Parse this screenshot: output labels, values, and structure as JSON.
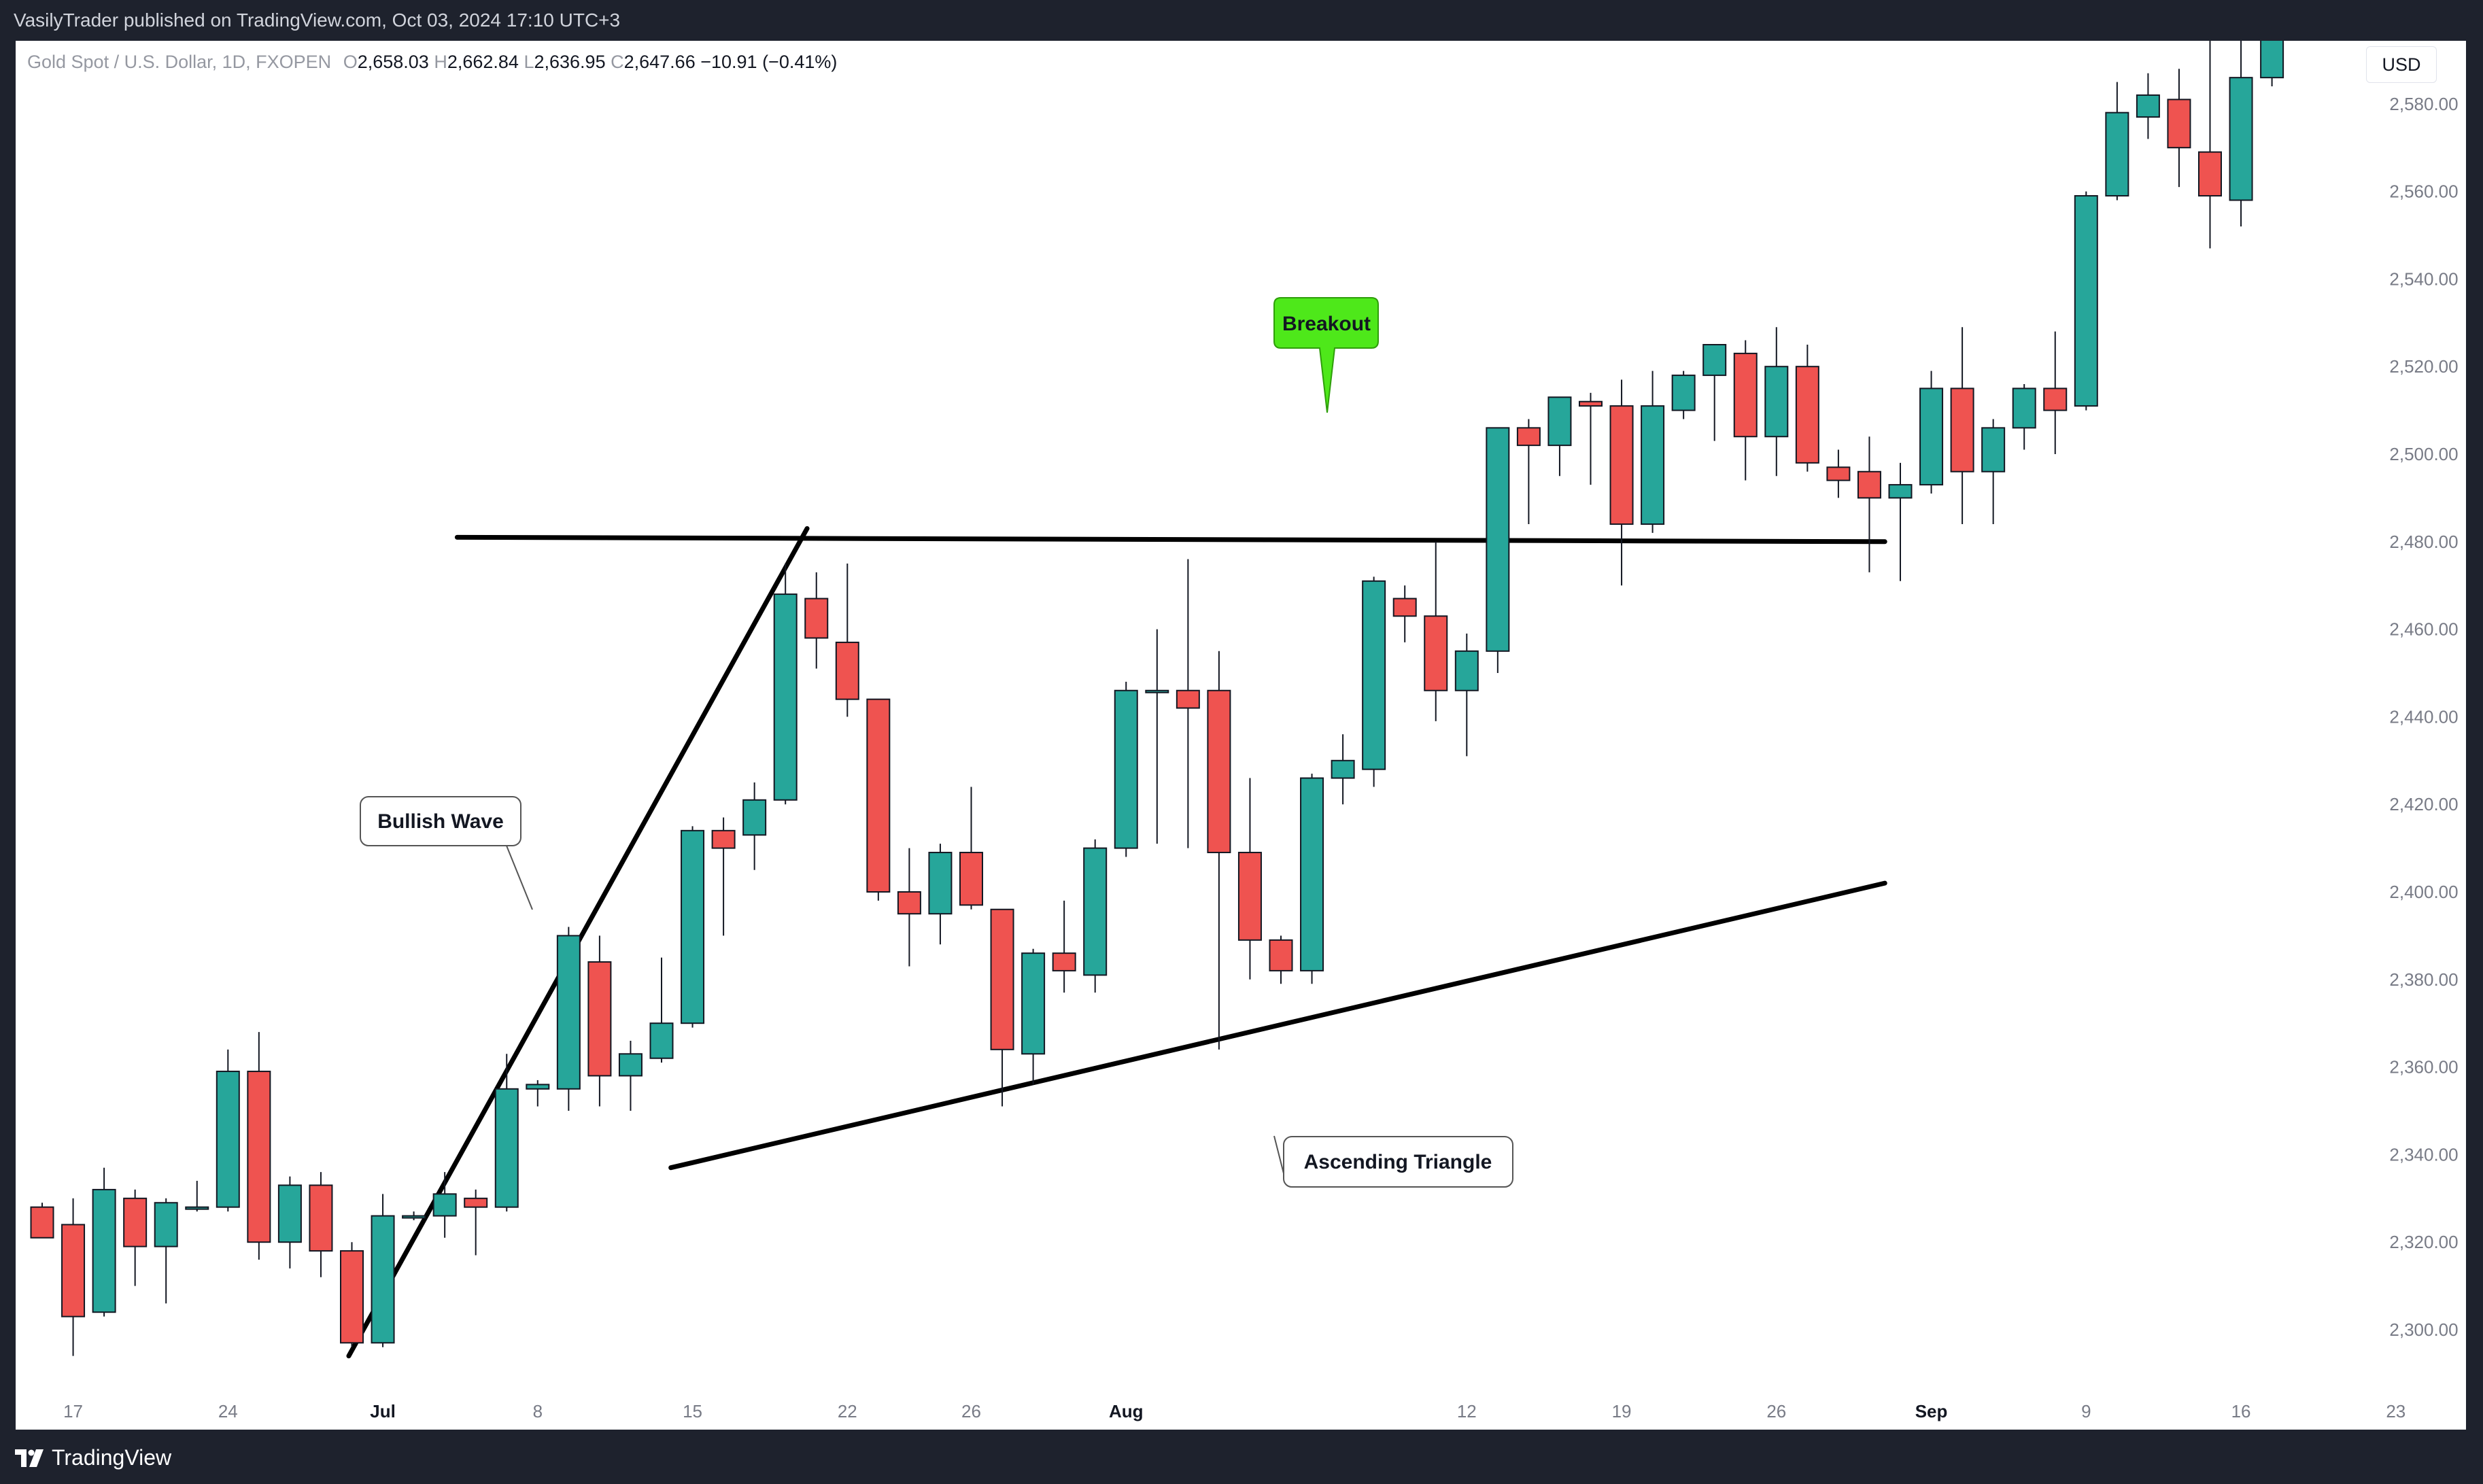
{
  "publish_line": "VasilyTrader published on TradingView.com, Oct 03, 2024 17:10 UTC+3",
  "legend": {
    "symbol": "Gold Spot / U.S. Dollar, 1D, FXOPEN",
    "open_label": "O",
    "open": "2,658.03",
    "high_label": "H",
    "high": "2,662.84",
    "low_label": "L",
    "low": "2,636.95",
    "close_label": "C",
    "close": "2,647.66",
    "change": "−10.91 (−0.41%)"
  },
  "currency": "USD",
  "footer": {
    "brand": "TradingView",
    "logo_icon": "tradingview-logo-icon"
  },
  "colors": {
    "up": "#26a69a",
    "down": "#ef5350",
    "breakout_callout": "#4ee81a",
    "background": "#ffffff"
  },
  "chart_data": {
    "type": "candlestick",
    "ylim": [
      2290,
      2610
    ],
    "grid": false,
    "y_ticks": [
      "2,300.00",
      "2,320.00",
      "2,340.00",
      "2,360.00",
      "2,380.00",
      "2,400.00",
      "2,420.00",
      "2,440.00",
      "2,460.00",
      "2,480.00",
      "2,500.00",
      "2,520.00",
      "2,540.00",
      "2,560.00",
      "2,580.00"
    ],
    "x_ticks": [
      {
        "label": "17",
        "index": 1
      },
      {
        "label": "24",
        "index": 6
      },
      {
        "label": "Jul",
        "index": 11,
        "bold": true
      },
      {
        "label": "8",
        "index": 16
      },
      {
        "label": "15",
        "index": 21
      },
      {
        "label": "22",
        "index": 26
      },
      {
        "label": "26",
        "index": 30
      },
      {
        "label": "Aug",
        "index": 35,
        "bold": true
      },
      {
        "label": "12",
        "index": 46
      },
      {
        "label": "19",
        "index": 51
      },
      {
        "label": "26",
        "index": 56
      },
      {
        "label": "Sep",
        "index": 61,
        "bold": true
      },
      {
        "label": "9",
        "index": 66
      },
      {
        "label": "16",
        "index": 71
      },
      {
        "label": "23",
        "index": 76
      }
    ],
    "candles": [
      [
        2328,
        2329,
        2321,
        2321
      ],
      [
        2324,
        2330,
        2294,
        2303
      ],
      [
        2304,
        2337,
        2303,
        2332
      ],
      [
        2330,
        2332,
        2310,
        2319
      ],
      [
        2319,
        2330,
        2306,
        2329
      ],
      [
        2328,
        2334,
        2327,
        2328
      ],
      [
        2328,
        2364,
        2327,
        2359
      ],
      [
        2359,
        2368,
        2316,
        2320
      ],
      [
        2320,
        2335,
        2314,
        2333
      ],
      [
        2333,
        2336,
        2312,
        2318
      ],
      [
        2318,
        2320,
        2296,
        2297
      ],
      [
        2297,
        2331,
        2296,
        2326
      ],
      [
        2326,
        2327,
        2325,
        2326
      ],
      [
        2326,
        2336,
        2321,
        2331
      ],
      [
        2330,
        2332,
        2317,
        2328
      ],
      [
        2328,
        2363,
        2327,
        2355
      ],
      [
        2355,
        2357,
        2351,
        2356
      ],
      [
        2355,
        2392,
        2350,
        2390
      ],
      [
        2384,
        2390,
        2351,
        2358
      ],
      [
        2358,
        2366,
        2350,
        2363
      ],
      [
        2362,
        2385,
        2361,
        2370
      ],
      [
        2370,
        2415,
        2369,
        2414
      ],
      [
        2414,
        2417,
        2390,
        2410
      ],
      [
        2413,
        2425,
        2405,
        2421
      ],
      [
        2421,
        2475,
        2420,
        2468
      ],
      [
        2467,
        2473,
        2451,
        2458
      ],
      [
        2457,
        2475,
        2440,
        2444
      ],
      [
        2444,
        2444,
        2398,
        2400
      ],
      [
        2400,
        2410,
        2383,
        2395
      ],
      [
        2395,
        2411,
        2388,
        2409
      ],
      [
        2409,
        2424,
        2396,
        2397
      ],
      [
        2396,
        2396,
        2351,
        2364
      ],
      [
        2363,
        2387,
        2356,
        2386
      ],
      [
        2386,
        2398,
        2377,
        2382
      ],
      [
        2381,
        2412,
        2377,
        2410
      ],
      [
        2410,
        2448,
        2408,
        2446
      ],
      [
        2446,
        2460,
        2411,
        2446
      ],
      [
        2446,
        2476,
        2410,
        2442
      ],
      [
        2446,
        2455,
        2364,
        2409
      ],
      [
        2409,
        2426,
        2380,
        2389
      ],
      [
        2389,
        2390,
        2379,
        2382
      ],
      [
        2382,
        2427,
        2379,
        2426
      ],
      [
        2426,
        2436,
        2420,
        2430
      ],
      [
        2428,
        2472,
        2424,
        2471
      ],
      [
        2467,
        2470,
        2457,
        2463
      ],
      [
        2463,
        2480,
        2439,
        2446
      ],
      [
        2446,
        2459,
        2431,
        2455
      ],
      [
        2455,
        2506,
        2450,
        2506
      ],
      [
        2506,
        2508,
        2484,
        2502
      ],
      [
        2502,
        2513,
        2495,
        2513
      ],
      [
        2512,
        2514,
        2493,
        2511
      ],
      [
        2511,
        2517,
        2470,
        2484
      ],
      [
        2484,
        2519,
        2482,
        2511
      ],
      [
        2510,
        2519,
        2508,
        2518
      ],
      [
        2518,
        2525,
        2503,
        2525
      ],
      [
        2523,
        2526,
        2494,
        2504
      ],
      [
        2504,
        2529,
        2495,
        2520
      ],
      [
        2520,
        2525,
        2496,
        2498
      ],
      [
        2497,
        2501,
        2490,
        2494
      ],
      [
        2496,
        2504,
        2473,
        2490
      ],
      [
        2490,
        2498,
        2471,
        2493
      ],
      [
        2493,
        2519,
        2491,
        2515
      ],
      [
        2515,
        2529,
        2484,
        2496
      ],
      [
        2496,
        2508,
        2484,
        2506
      ],
      [
        2506,
        2516,
        2501,
        2515
      ],
      [
        2515,
        2528,
        2500,
        2510
      ],
      [
        2511,
        2560,
        2510,
        2559
      ],
      [
        2559,
        2585,
        2558,
        2578
      ],
      [
        2577,
        2587,
        2572,
        2582
      ],
      [
        2581,
        2588,
        2561,
        2570
      ],
      [
        2569,
        2600,
        2547,
        2559
      ],
      [
        2558,
        2595,
        2552,
        2586
      ],
      [
        2586,
        2607,
        2584,
        2608
      ]
    ],
    "annotations": [
      {
        "text": "Bullish Wave"
      },
      {
        "text": "Breakout"
      },
      {
        "text": "Ascending Triangle"
      }
    ],
    "trendlines": [
      {
        "name": "bullish-wave-line",
        "from": {
          "index": 9.9,
          "price": 2294
        },
        "to": {
          "index": 24.7,
          "price": 2483
        }
      },
      {
        "name": "resistance-line",
        "from": {
          "index": 13.4,
          "price": 2481
        },
        "to": {
          "index": 59.5,
          "price": 2480
        }
      },
      {
        "name": "ascending-support-line",
        "from": {
          "index": 20.3,
          "price": 2337
        },
        "to": {
          "index": 59.5,
          "price": 2402
        }
      }
    ]
  }
}
